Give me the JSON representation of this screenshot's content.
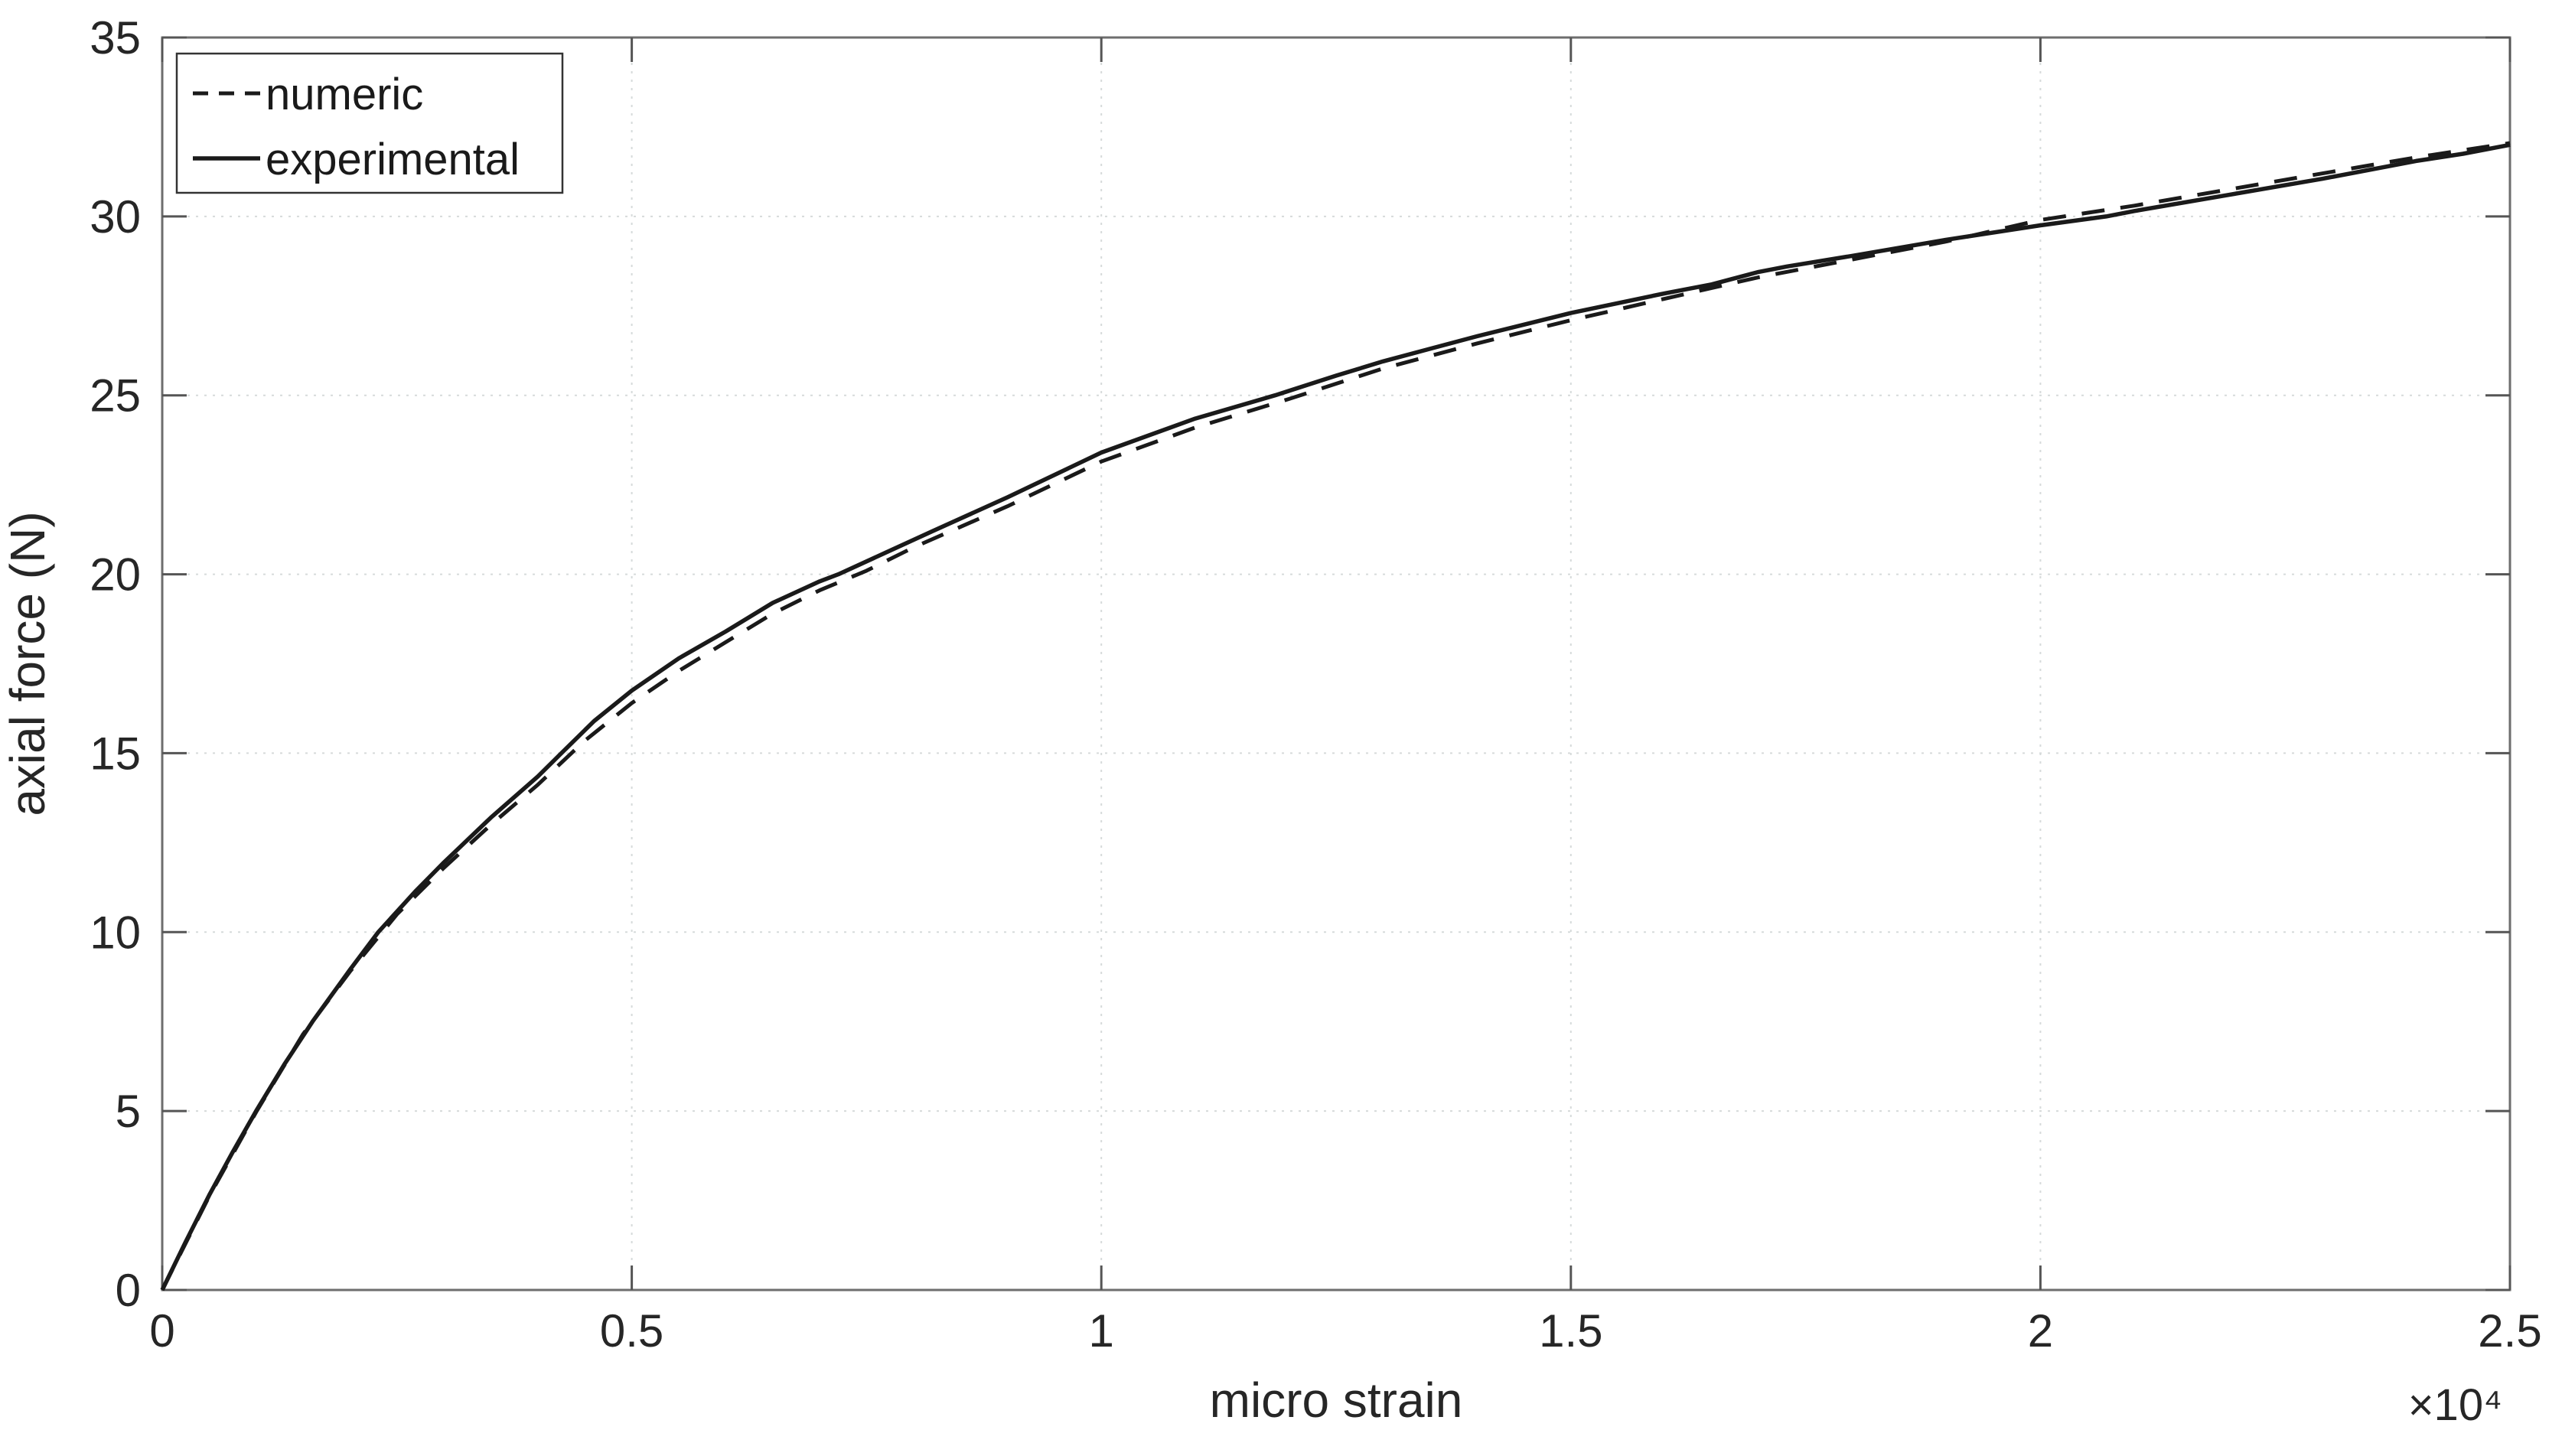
{
  "figure": {
    "background": "#ffffff",
    "axis_color": "#6e6e6e",
    "tick_color": "#555555",
    "tick_label_color": "#262626",
    "grid_color": "#d6dada",
    "curve_color": "#1a1a1a",
    "legend_border_color": "#333333"
  },
  "chart_data": {
    "type": "line",
    "title": "",
    "xlabel": "micro strain",
    "ylabel": "axial force (N)",
    "x_multiplier_label": "×10⁴",
    "xlim": [
      0,
      25000
    ],
    "ylim": [
      0,
      35
    ],
    "x_ticks": [
      0,
      5000,
      10000,
      15000,
      20000,
      25000
    ],
    "x_tick_labels": [
      "0",
      "0.5",
      "1",
      "1.5",
      "2",
      "2.5"
    ],
    "y_ticks": [
      0,
      5,
      10,
      15,
      20,
      25,
      30,
      35
    ],
    "y_tick_labels": [
      "0",
      "5",
      "10",
      "15",
      "20",
      "25",
      "30",
      "35"
    ],
    "grid": true,
    "legend_position": "top-left",
    "legend": [
      "numeric",
      "experimental"
    ],
    "series": [
      {
        "name": "numeric",
        "style": "dashed",
        "x": [
          0,
          500,
          1000,
          1500,
          2000,
          2500,
          3000,
          3500,
          4000,
          4500,
          5000,
          5500,
          6000,
          6500,
          7000,
          7500,
          8000,
          9000,
          10000,
          11000,
          12000,
          13000,
          14000,
          15000,
          16000,
          17000,
          18000,
          19000,
          20000,
          21000,
          22000,
          23000,
          24000,
          24500,
          25000
        ],
        "y": [
          0,
          2.62,
          4.97,
          7.15,
          8.9,
          10.5,
          11.8,
          13.0,
          14.12,
          15.35,
          16.4,
          17.3,
          18.1,
          18.9,
          19.55,
          20.1,
          20.75,
          21.9,
          23.15,
          24.1,
          24.9,
          25.75,
          26.45,
          27.1,
          27.7,
          28.3,
          28.8,
          29.3,
          29.9,
          30.3,
          30.75,
          31.2,
          31.65,
          31.85,
          32.05
        ]
      },
      {
        "name": "experimental",
        "style": "solid",
        "x": [
          0,
          250,
          500,
          750,
          1000,
          1300,
          1600,
          2000,
          2300,
          2700,
          3000,
          3500,
          4000,
          4250,
          4600,
          5000,
          5500,
          6000,
          6500,
          7000,
          7200,
          7700,
          8200,
          9000,
          10000,
          11000,
          11850,
          12500,
          13000,
          13500,
          14000,
          15000,
          16000,
          16500,
          17000,
          17300,
          18000,
          19000,
          20000,
          20700,
          21000,
          22000,
          23000,
          24000,
          24500,
          25000
        ],
        "y": [
          0,
          1.35,
          2.65,
          3.85,
          5.0,
          6.3,
          7.5,
          8.95,
          10.0,
          11.15,
          11.95,
          13.2,
          14.35,
          15.0,
          15.9,
          16.75,
          17.65,
          18.4,
          19.2,
          19.8,
          20.0,
          20.6,
          21.2,
          22.15,
          23.4,
          24.35,
          25.0,
          25.55,
          25.95,
          26.3,
          26.65,
          27.3,
          27.85,
          28.1,
          28.45,
          28.6,
          28.9,
          29.35,
          29.75,
          30.0,
          30.15,
          30.6,
          31.05,
          31.55,
          31.75,
          32.0
        ]
      }
    ]
  }
}
